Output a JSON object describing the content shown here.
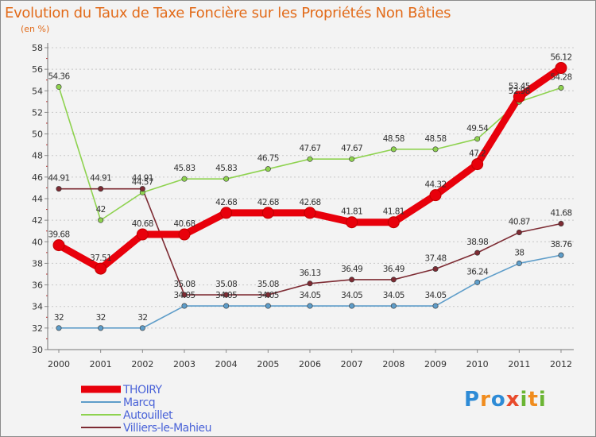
{
  "title": "Evolution du Taux de Taxe Foncière sur les Propriétés Non Bâties",
  "unit": "(en %)",
  "logo": {
    "text": "Proxiti",
    "letters": [
      "P",
      "r",
      "o",
      "x",
      "i",
      "t",
      "i"
    ],
    "colors": [
      "#2e8bd6",
      "#f08c1e",
      "#2e8bd6",
      "#e84a2b",
      "#6bb533",
      "#f08c1e",
      "#6bb533"
    ]
  },
  "chart_data": {
    "type": "line",
    "title": "Evolution du Taux de Taxe Foncière sur les Propriétés Non Bâties",
    "ylabel": "(en %)",
    "xlabel": "",
    "x": [
      "2000",
      "2001",
      "2002",
      "2003",
      "2004",
      "2005",
      "2006",
      "2007",
      "2008",
      "2009",
      "2010",
      "2011",
      "2012"
    ],
    "ylim": [
      30,
      58
    ],
    "yticks": [
      30,
      32,
      34,
      36,
      38,
      40,
      42,
      44,
      46,
      48,
      50,
      52,
      54,
      56,
      58
    ],
    "grid": "horizontal-dashed",
    "legend": "bottom-left",
    "series": [
      {
        "name": "THOIRY",
        "color": "#e8000b",
        "values": [
          39.68,
          37.51,
          40.68,
          40.68,
          42.68,
          42.68,
          42.68,
          41.81,
          41.81,
          44.32,
          47.2,
          53.45,
          56.12
        ],
        "labels": [
          "39.68",
          "37.51",
          "40.68",
          "40.68",
          "42.68",
          "42.68",
          "42.68",
          "41.81",
          "41.81",
          "44.32",
          "47.2",
          "53.45",
          "56.12"
        ]
      },
      {
        "name": "Marcq",
        "color": "#5e9dc9",
        "values": [
          32,
          32,
          32,
          34.05,
          34.05,
          34.05,
          34.05,
          34.05,
          34.05,
          34.05,
          36.24,
          38,
          38.76
        ],
        "labels": [
          "32",
          "32",
          "32",
          "34.05",
          "34.05",
          "34.05",
          "34.05",
          "34.05",
          "34.05",
          "34.05",
          "36.24",
          "38",
          "38.76"
        ]
      },
      {
        "name": "Autouillet",
        "color": "#8ed24f",
        "values": [
          54.36,
          42,
          44.57,
          45.83,
          45.83,
          46.75,
          47.67,
          47.67,
          48.58,
          48.58,
          49.54,
          52.98,
          54.28
        ],
        "labels": [
          "54.36",
          "42",
          "44.57",
          "45.83",
          "45.83",
          "46.75",
          "47.67",
          "47.67",
          "48.58",
          "48.58",
          "49.54",
          "52.98",
          "54.28"
        ]
      },
      {
        "name": "Villiers-le-Mahieu",
        "color": "#7d2b33",
        "values": [
          44.91,
          44.91,
          44.91,
          35.08,
          35.08,
          35.08,
          36.13,
          36.49,
          36.49,
          37.48,
          38.98,
          40.87,
          41.68
        ],
        "labels": [
          "44.91",
          "44.91",
          "44.91",
          "35.08",
          "35.08",
          "35.08",
          "36.13",
          "36.49",
          "36.49",
          "37.48",
          "38.98",
          "40.87",
          "41.68"
        ]
      }
    ]
  }
}
